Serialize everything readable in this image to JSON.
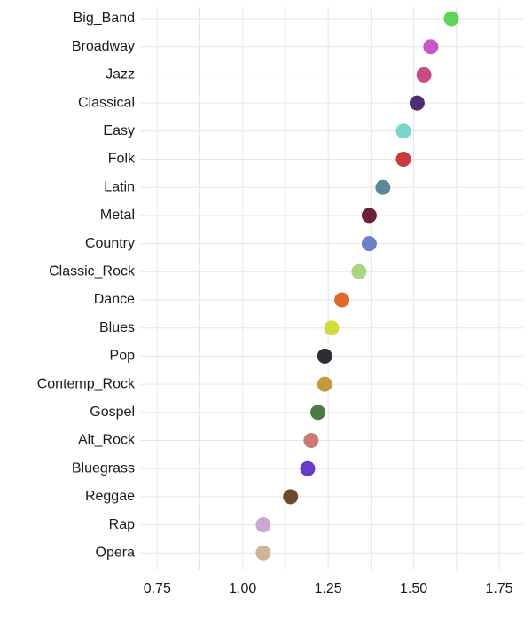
{
  "chart_data": {
    "type": "scatter",
    "title": "",
    "xlabel": "",
    "ylabel": "",
    "xlim": [
      0.7,
      1.82
    ],
    "x_ticks": [
      0.75,
      1.0,
      1.25,
      1.5,
      1.75
    ],
    "x_tick_labels": [
      "0.75",
      "1.00",
      "1.25",
      "1.50",
      "1.75"
    ],
    "grid": true,
    "legend": "none",
    "categories": [
      "Big_Band",
      "Broadway",
      "Jazz",
      "Classical",
      "Easy",
      "Folk",
      "Latin",
      "Metal",
      "Country",
      "Classic_Rock",
      "Dance",
      "Blues",
      "Pop",
      "Contemp_Rock",
      "Gospel",
      "Alt_Rock",
      "Bluegrass",
      "Reggae",
      "Rap",
      "Opera"
    ],
    "values": [
      1.61,
      1.55,
      1.53,
      1.51,
      1.47,
      1.47,
      1.41,
      1.37,
      1.37,
      1.34,
      1.29,
      1.26,
      1.24,
      1.24,
      1.22,
      1.2,
      1.19,
      1.14,
      1.06,
      1.06
    ],
    "colors": [
      "#5fd35a",
      "#c657c9",
      "#cc4a86",
      "#4f2d6e",
      "#76d6c9",
      "#c93a3c",
      "#5a8a99",
      "#6b2236",
      "#6b80cc",
      "#a8d580",
      "#e0682e",
      "#d6d93a",
      "#2d2d33",
      "#c59a3a",
      "#4d7a45",
      "#cc7a78",
      "#6a3ac9",
      "#6b4a2e",
      "#c9a8d6",
      "#cdb494"
    ]
  }
}
